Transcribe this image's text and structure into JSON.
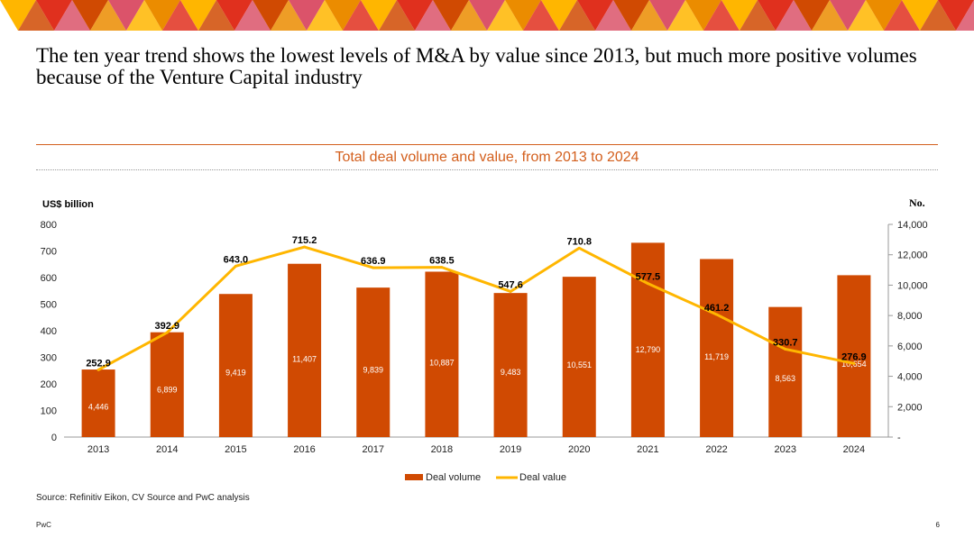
{
  "slide": {
    "title": "The ten year trend shows the lowest levels of M&A by value since 2013, but much more positive volumes because of the Venture Capital industry",
    "source": "Source: Refinitiv Eikon, CV Source and PwC analysis",
    "footer_brand": "PwC",
    "page_number": "6"
  },
  "colors": {
    "bar": "#d04a02",
    "line": "#ffb600",
    "banner": [
      "#ffb600",
      "#e0301e",
      "#d04a02",
      "#db536a",
      "#eb8c00"
    ]
  },
  "chart_data": {
    "type": "bar",
    "title": "Total deal volume and value, from 2013 to 2024",
    "ylabel_left": "US$ billion",
    "ylabel_right": "No.",
    "categories": [
      "2013",
      "2014",
      "2015",
      "2016",
      "2017",
      "2018",
      "2019",
      "2020",
      "2021",
      "2022",
      "2023",
      "2024"
    ],
    "y_left": {
      "range": [
        0,
        800
      ],
      "ticks": [
        "0",
        "100",
        "200",
        "300",
        "400",
        "500",
        "600",
        "700",
        "800"
      ]
    },
    "y_right": {
      "range": [
        0,
        14000
      ],
      "ticks": [
        "-",
        "2,000",
        "4,000",
        "6,000",
        "8,000",
        "10,000",
        "12,000",
        "14,000"
      ]
    },
    "legend_position": "bottom",
    "series": [
      {
        "name": "Deal volume",
        "type": "bar",
        "axis": "right",
        "values": [
          4446,
          6899,
          9419,
          11407,
          9839,
          10887,
          9483,
          10551,
          12790,
          11719,
          8563,
          10654
        ],
        "labels": [
          "4,446",
          "6,899",
          "9,419",
          "11,407",
          "9,839",
          "10,887",
          "9,483",
          "10,551",
          "12,790",
          "11,719",
          "8,563",
          "10,654"
        ]
      },
      {
        "name": "Deal value",
        "type": "line",
        "axis": "left",
        "values": [
          252.9,
          392.9,
          643.0,
          715.2,
          636.9,
          638.5,
          547.6,
          710.8,
          577.5,
          461.2,
          330.7,
          276.9
        ],
        "labels": [
          "252.9",
          "392.9",
          "643.0",
          "715.2",
          "636.9",
          "638.5",
          "547.6",
          "710.8",
          "577.5",
          "461.2",
          "330.7",
          "276.9"
        ]
      }
    ]
  }
}
